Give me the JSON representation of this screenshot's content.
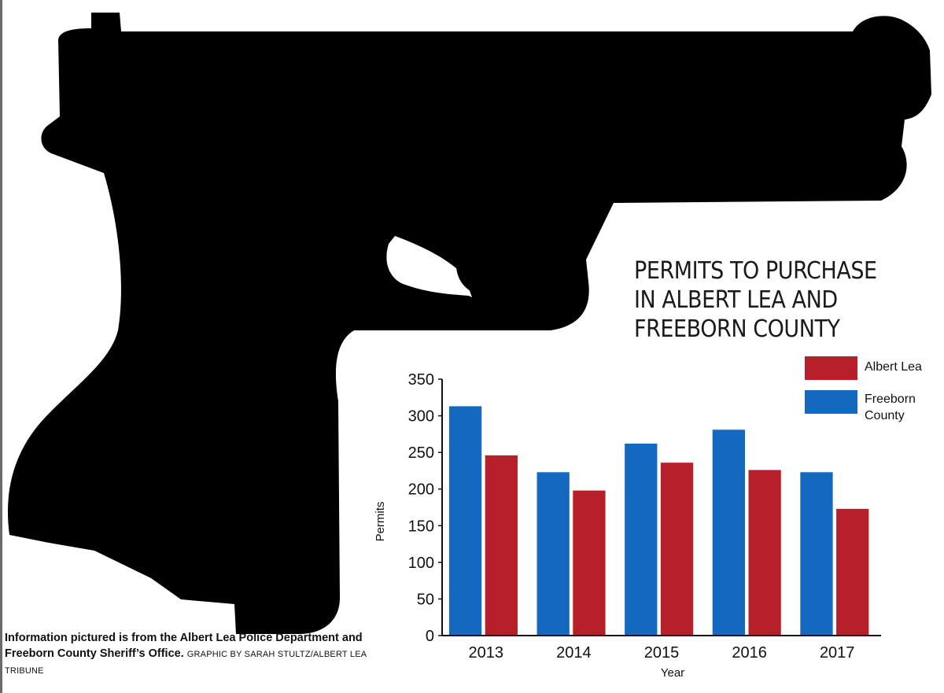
{
  "chart_data": {
    "type": "bar",
    "title_lines": [
      "PERMITS TO PURCHASE",
      "IN ALBERT LEA AND",
      "FREEBORN COUNTY"
    ],
    "categories": [
      "2013",
      "2014",
      "2015",
      "2016",
      "2017"
    ],
    "series": [
      {
        "name": "Freeborn County",
        "color": "#1469bf",
        "values": [
          313,
          223,
          262,
          281,
          223
        ]
      },
      {
        "name": "Albert Lea",
        "color": "#b71f2a",
        "values": [
          246,
          198,
          236,
          226,
          173
        ]
      }
    ],
    "legend_order": [
      "Albert Lea",
      "Freeborn County"
    ],
    "legend_labels": [
      "Albert Lea",
      "Freeborn\nCounty"
    ],
    "xlabel": "Year",
    "ylabel": "Permits",
    "ylim": [
      0,
      350
    ],
    "yticks": [
      "0",
      "50",
      "100",
      "150",
      "200",
      "250",
      "300",
      "350"
    ],
    "grid": false,
    "legend_position": "top-right"
  },
  "source": {
    "text": "Information pictured is from the Albert Lea Police Department and Freeborn County Sheriff’s Office.",
    "credit": "GRAPHIC BY SARAH STULTZ/ALBERT LEA TRIBUNE"
  },
  "colors": {
    "silhouette": "#000000",
    "axis": "#111111"
  }
}
